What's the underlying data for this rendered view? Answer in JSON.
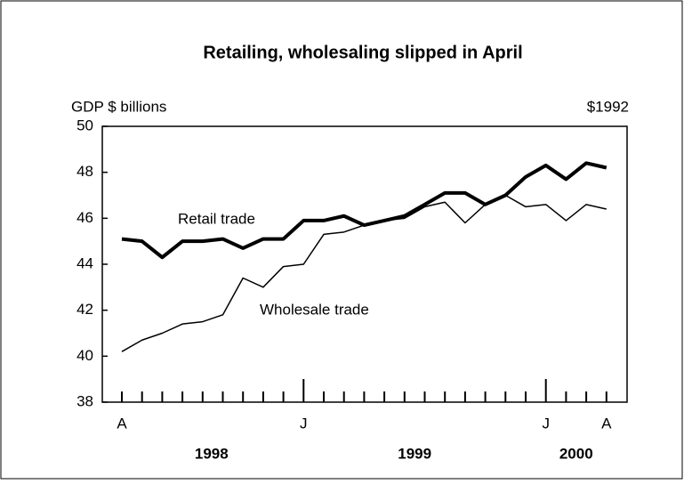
{
  "chart_data": {
    "type": "line",
    "title": "Retailing, wholesaling slipped in April",
    "y_label": "GDP $ billions",
    "unit_note": "$1992",
    "categories": [
      "A",
      null,
      null,
      null,
      null,
      null,
      null,
      null,
      null,
      "J",
      null,
      null,
      null,
      null,
      null,
      null,
      null,
      null,
      null,
      null,
      null,
      "J",
      null,
      null,
      "A"
    ],
    "years": [
      "1998",
      "1999",
      "2000"
    ],
    "series": [
      {
        "name": "Retail trade",
        "color": "#000000",
        "width": 4,
        "values": [
          45.1,
          45.0,
          44.3,
          45.0,
          45.0,
          45.1,
          44.7,
          45.1,
          45.1,
          45.9,
          45.9,
          46.1,
          45.7,
          45.9,
          46.1,
          46.6,
          47.1,
          47.1,
          46.6,
          47.0,
          47.8,
          48.3,
          47.7,
          48.4,
          48.2
        ]
      },
      {
        "name": "Wholesale trade",
        "color": "#000000",
        "width": 1.5,
        "values": [
          40.2,
          40.7,
          41.0,
          41.4,
          41.5,
          41.8,
          43.4,
          43.0,
          43.9,
          44.0,
          45.3,
          45.4,
          45.7,
          45.9,
          46.0,
          46.5,
          46.7,
          45.8,
          46.6,
          47.0,
          46.5,
          46.6,
          45.9,
          46.6,
          46.4
        ]
      }
    ],
    "ylim": [
      38,
      50
    ],
    "yticks": [
      38,
      40,
      42,
      44,
      46,
      48,
      50
    ],
    "grid": false
  }
}
